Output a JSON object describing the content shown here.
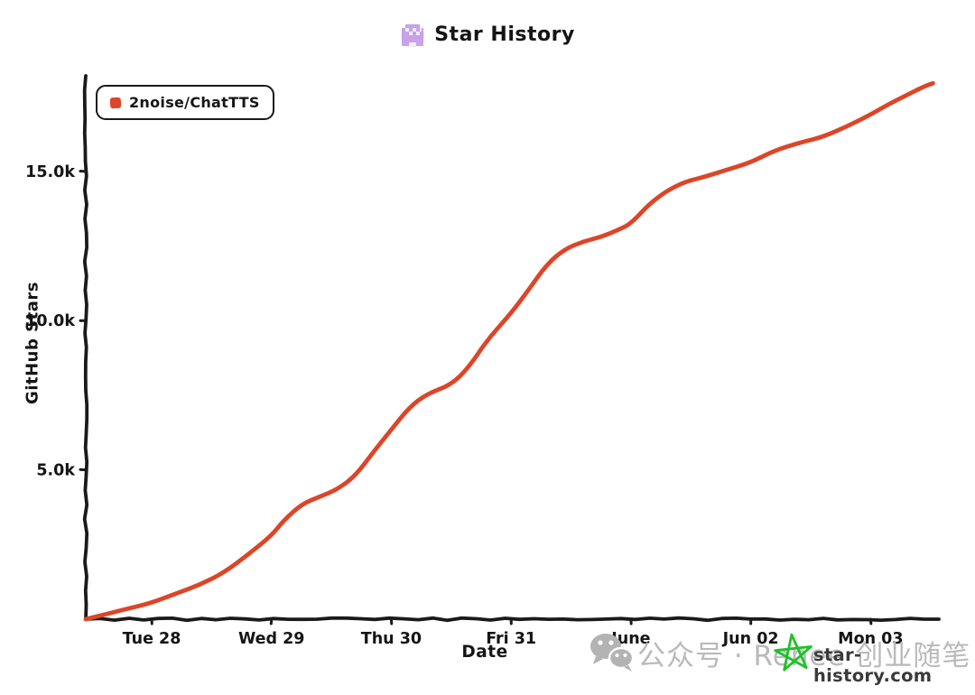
{
  "header": {
    "logo_color": "#c9a2e9",
    "logo_bg_color": "#efeef3"
  },
  "chart_data": {
    "type": "line",
    "title": "Star History",
    "xlabel": "Date",
    "ylabel": "GitHub Stars",
    "style": "xkcd-hand-drawn",
    "grid": false,
    "legend_position": "top-left",
    "axis_color": "#1a1a1a",
    "x_unit": "days since Tue May 28 00:00",
    "xlim": [
      -0.55,
      6.57
    ],
    "ylim": [
      0,
      18200
    ],
    "x_ticks": [
      {
        "value": 0,
        "label": "Tue 28"
      },
      {
        "value": 1,
        "label": "Wed 29"
      },
      {
        "value": 2,
        "label": "Thu 30"
      },
      {
        "value": 3,
        "label": "Fri 31"
      },
      {
        "value": 4,
        "label": "June"
      },
      {
        "value": 5,
        "label": "Jun 02"
      },
      {
        "value": 6,
        "label": "Mon 03"
      }
    ],
    "y_ticks": [
      {
        "value": 5000,
        "label": "5.0k"
      },
      {
        "value": 10000,
        "label": "10.0k"
      },
      {
        "value": 15000,
        "label": "15.0k"
      }
    ],
    "series": [
      {
        "name": "2noise/ChatTTS",
        "color": "#dd4528",
        "points": [
          [
            -0.55,
            0
          ],
          [
            -0.35,
            200
          ],
          [
            -0.15,
            400
          ],
          [
            0,
            550
          ],
          [
            0.2,
            850
          ],
          [
            0.4,
            1150
          ],
          [
            0.6,
            1550
          ],
          [
            0.8,
            2150
          ],
          [
            1.0,
            2800
          ],
          [
            1.1,
            3300
          ],
          [
            1.25,
            3850
          ],
          [
            1.4,
            4100
          ],
          [
            1.55,
            4350
          ],
          [
            1.7,
            4800
          ],
          [
            1.85,
            5600
          ],
          [
            2.0,
            6350
          ],
          [
            2.15,
            7100
          ],
          [
            2.3,
            7550
          ],
          [
            2.5,
            7850
          ],
          [
            2.65,
            8450
          ],
          [
            2.8,
            9350
          ],
          [
            3.0,
            10250
          ],
          [
            3.15,
            11050
          ],
          [
            3.3,
            11900
          ],
          [
            3.45,
            12400
          ],
          [
            3.6,
            12650
          ],
          [
            3.75,
            12800
          ],
          [
            3.9,
            13050
          ],
          [
            4.0,
            13250
          ],
          [
            4.15,
            13900
          ],
          [
            4.3,
            14350
          ],
          [
            4.45,
            14650
          ],
          [
            4.6,
            14800
          ],
          [
            4.8,
            15050
          ],
          [
            5.0,
            15300
          ],
          [
            5.2,
            15700
          ],
          [
            5.4,
            15950
          ],
          [
            5.6,
            16150
          ],
          [
            5.8,
            16500
          ],
          [
            6.0,
            16900
          ],
          [
            6.15,
            17250
          ],
          [
            6.3,
            17550
          ],
          [
            6.45,
            17850
          ],
          [
            6.52,
            17950
          ]
        ]
      }
    ]
  },
  "watermark": {
    "account_text": "公众号 · Renee 创业随笔",
    "account_color": "#bababa",
    "wechat_color": "#b3b3b3",
    "site_text": "star-history.com",
    "site_color": "#3a3a3a",
    "star_color": "#1fc127"
  }
}
